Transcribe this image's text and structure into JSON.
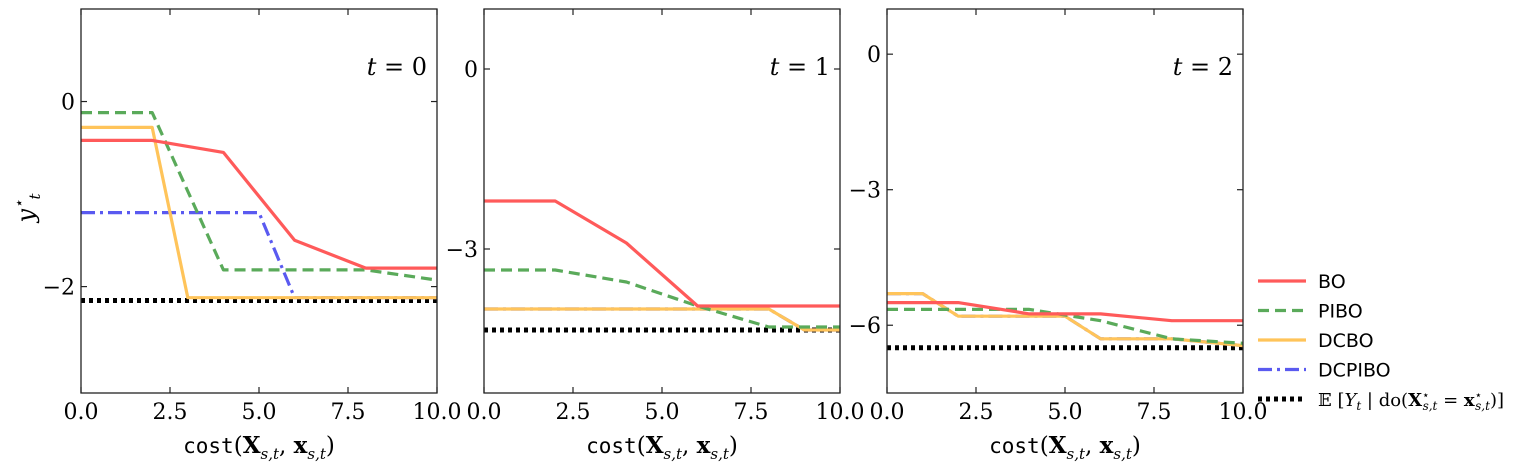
{
  "colors": {
    "BO": "#ff5a5a",
    "PIBO": "#5aaa5a",
    "DCBO": "#ffc45a",
    "DCPIBO": "#5a5af0",
    "expected": "#000000"
  },
  "legend": {
    "items": [
      {
        "key": "BO",
        "label": "BO",
        "style": "solid"
      },
      {
        "key": "PIBO",
        "label": "PIBO",
        "style": "dashed"
      },
      {
        "key": "DCBO",
        "label": "DCBO",
        "style": "solid"
      },
      {
        "key": "DCPIBO",
        "label": "DCPIBO",
        "style": "dashdot"
      },
      {
        "key": "expected",
        "label": "𝔼 [Y_t | do(X*_{s,t} = x*_{s,t})]",
        "style": "dotted"
      }
    ]
  },
  "chart_data": [
    {
      "type": "line",
      "annotation": "t = 0",
      "xlabel": "cost(X_{s,t}, x_{s,t})",
      "ylabel": "y*_t",
      "xlim": [
        0,
        10
      ],
      "ylim": [
        -3.15,
        1.0
      ],
      "xticks": [
        0,
        2.5,
        5,
        7.5,
        10
      ],
      "xtick_labels": [
        "0.0",
        "2.5",
        "5.0",
        "7.5",
        "10.0"
      ],
      "yticks": [
        0,
        -2
      ],
      "ytick_labels": [
        "0",
        "−2"
      ],
      "series": [
        {
          "name": "BO",
          "x": [
            0,
            2,
            4,
            6,
            8,
            10
          ],
          "y": [
            -0.42,
            -0.42,
            -0.55,
            -1.5,
            -1.8,
            -1.8
          ]
        },
        {
          "name": "PIBO",
          "x": [
            0,
            2,
            4,
            6,
            8,
            10
          ],
          "y": [
            -0.12,
            -0.12,
            -1.82,
            -1.82,
            -1.82,
            -1.93
          ]
        },
        {
          "name": "DCBO",
          "x": [
            0,
            2,
            3,
            4,
            6,
            8,
            10
          ],
          "y": [
            -0.28,
            -0.28,
            -2.12,
            -2.12,
            -2.12,
            -2.12,
            -2.12
          ]
        },
        {
          "name": "DCPIBO",
          "x": [
            0,
            2,
            4,
            5,
            6,
            8,
            10
          ],
          "y": [
            -1.2,
            -1.2,
            -1.2,
            -1.2,
            -2.12,
            -2.12,
            -2.12
          ]
        },
        {
          "name": "expected",
          "x": [
            0,
            10
          ],
          "y": [
            -2.15,
            -2.15
          ]
        }
      ]
    },
    {
      "type": "line",
      "annotation": "t = 1",
      "xlabel": "cost(X_{s,t}, x_{s,t})",
      "ylabel": "",
      "xlim": [
        0,
        10
      ],
      "ylim": [
        -5.4,
        1.0
      ],
      "xticks": [
        0,
        2.5,
        5,
        7.5,
        10
      ],
      "xtick_labels": [
        "0.0",
        "2.5",
        "5.0",
        "7.5",
        "10.0"
      ],
      "yticks": [
        0,
        -3
      ],
      "ytick_labels": [
        "0",
        "−3"
      ],
      "series": [
        {
          "name": "BO",
          "x": [
            0,
            2,
            4,
            6,
            8,
            10
          ],
          "y": [
            -2.2,
            -2.2,
            -2.9,
            -3.95,
            -3.95,
            -3.95
          ]
        },
        {
          "name": "PIBO",
          "x": [
            0,
            2,
            4,
            6,
            8,
            10
          ],
          "y": [
            -3.35,
            -3.35,
            -3.55,
            -3.95,
            -4.3,
            -4.3
          ]
        },
        {
          "name": "DCBO",
          "x": [
            0,
            2,
            4,
            6,
            8,
            9,
            10
          ],
          "y": [
            -4.0,
            -4.0,
            -4.0,
            -4.0,
            -4.0,
            -4.35,
            -4.35
          ]
        },
        {
          "name": "DCPIBO",
          "x": [
            0,
            2,
            4,
            6,
            8,
            9,
            10
          ],
          "y": [
            -4.0,
            -4.0,
            -4.0,
            -4.0,
            -4.0,
            -4.35,
            -4.35
          ]
        },
        {
          "name": "expected",
          "x": [
            0,
            10
          ],
          "y": [
            -4.35,
            -4.35
          ]
        }
      ]
    },
    {
      "type": "line",
      "annotation": "t = 2",
      "xlabel": "cost(X_{s,t}, x_{s,t})",
      "ylabel": "",
      "xlim": [
        0,
        10
      ],
      "ylim": [
        -7.5,
        1.0
      ],
      "xticks": [
        0,
        2.5,
        5,
        7.5,
        10
      ],
      "xtick_labels": [
        "0.0",
        "2.5",
        "5.0",
        "7.5",
        "10.0"
      ],
      "yticks": [
        0,
        -3,
        -6
      ],
      "ytick_labels": [
        "0",
        "−3",
        "−6"
      ],
      "series": [
        {
          "name": "BO",
          "x": [
            0,
            2,
            4,
            6,
            8,
            10
          ],
          "y": [
            -5.5,
            -5.5,
            -5.75,
            -5.75,
            -5.9,
            -5.9
          ]
        },
        {
          "name": "PIBO",
          "x": [
            0,
            2,
            4,
            6,
            8,
            10
          ],
          "y": [
            -5.65,
            -5.65,
            -5.65,
            -5.9,
            -6.3,
            -6.4
          ]
        },
        {
          "name": "DCBO",
          "x": [
            0,
            1,
            2,
            4,
            5,
            6,
            8,
            10
          ],
          "y": [
            -5.3,
            -5.3,
            -5.8,
            -5.8,
            -5.8,
            -6.3,
            -6.3,
            -6.45
          ]
        },
        {
          "name": "DCPIBO",
          "x": [
            0,
            1,
            2,
            4,
            5,
            6,
            8,
            10
          ],
          "y": [
            -5.3,
            -5.3,
            -5.8,
            -5.8,
            -5.8,
            -6.3,
            -6.3,
            -6.45
          ]
        },
        {
          "name": "expected",
          "x": [
            0,
            10
          ],
          "y": [
            -6.5,
            -6.5
          ]
        }
      ]
    }
  ]
}
